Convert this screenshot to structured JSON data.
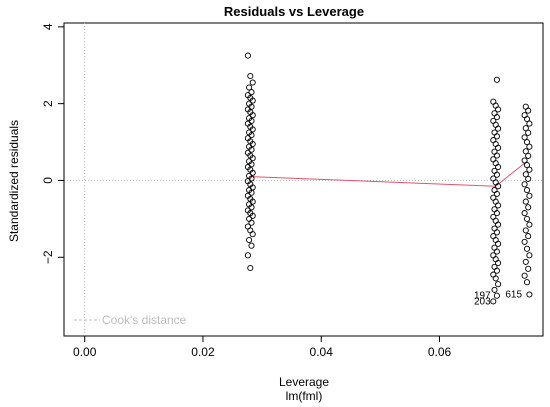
{
  "chart_data": {
    "type": "scatter",
    "title": "Residuals vs Leverage",
    "xlabel": "Leverage",
    "xlabel_sub": "lm(fml)",
    "ylabel": "Standardized residuals",
    "xlim": [
      -0.0035,
      0.0775
    ],
    "ylim": [
      -4.05,
      4.1
    ],
    "x_ticks": [
      0.0,
      0.02,
      0.04,
      0.06
    ],
    "x_tick_labels": [
      "0.00",
      "0.02",
      "0.04",
      "0.06"
    ],
    "y_ticks": [
      -2,
      0,
      2,
      4
    ],
    "y_tick_labels": [
      "−2",
      "0",
      "2",
      "4"
    ],
    "grid": false,
    "reference_lines": [
      {
        "orientation": "horizontal",
        "value": 0,
        "color": "#bebebe",
        "style": "dotted"
      },
      {
        "orientation": "vertical",
        "value": 0,
        "color": "#bebebe",
        "style": "dotted"
      }
    ],
    "legend": {
      "position": "bottom-left",
      "entries": [
        {
          "label": "Cook's distance",
          "color": "#bebebe",
          "style": "dashed"
        }
      ]
    },
    "leverage_groups": [
      {
        "leverage": 0.028,
        "residuals": [
          3.25,
          2.72,
          2.55,
          2.42,
          2.3,
          2.22,
          2.15,
          2.08,
          2.0,
          1.92,
          1.85,
          1.78,
          1.7,
          1.62,
          1.55,
          1.48,
          1.4,
          1.33,
          1.25,
          1.18,
          1.1,
          1.02,
          0.95,
          0.88,
          0.8,
          0.72,
          0.65,
          0.58,
          0.5,
          0.42,
          0.35,
          0.28,
          0.2,
          0.12,
          0.05,
          -0.02,
          -0.1,
          -0.18,
          -0.25,
          -0.32,
          -0.4,
          -0.48,
          -0.55,
          -0.62,
          -0.7,
          -0.78,
          -0.85,
          -0.92,
          -1.0,
          -1.1,
          -1.2,
          -1.3,
          -1.4,
          -1.55,
          -1.7,
          -1.95,
          -2.28
        ]
      },
      {
        "leverage": 0.0695,
        "residuals": [
          2.62,
          2.05,
          1.95,
          1.85,
          1.75,
          1.65,
          1.55,
          1.45,
          1.35,
          1.25,
          1.15,
          1.05,
          0.95,
          0.85,
          0.75,
          0.65,
          0.55,
          0.45,
          0.35,
          0.25,
          0.15,
          0.05,
          -0.05,
          -0.15,
          -0.25,
          -0.35,
          -0.45,
          -0.55,
          -0.65,
          -0.75,
          -0.85,
          -0.95,
          -1.05,
          -1.15,
          -1.25,
          -1.35,
          -1.45,
          -1.55,
          -1.65,
          -1.75,
          -1.85,
          -1.95,
          -2.05,
          -2.15,
          -2.25,
          -2.35,
          -2.45,
          -2.55,
          -2.7,
          -2.85,
          -3.0,
          -3.15
        ]
      },
      {
        "leverage": 0.0748,
        "residuals": [
          1.92,
          1.82,
          1.7,
          1.6,
          1.48,
          1.36,
          1.24,
          1.12,
          1.0,
          0.88,
          0.76,
          0.64,
          0.52,
          0.4,
          0.28,
          0.16,
          0.04,
          -0.1,
          -0.25,
          -0.4,
          -0.55,
          -0.7,
          -0.85,
          -1.0,
          -1.15,
          -1.3,
          -1.45,
          -1.6,
          -1.78,
          -1.95,
          -2.12,
          -2.3,
          -2.48,
          -2.65,
          -2.97
        ]
      }
    ],
    "smooth_line": {
      "color": "#df536b",
      "x": [
        0.028,
        0.0695,
        0.0748
      ],
      "y": [
        0.1,
        -0.15,
        0.5
      ]
    },
    "point_labels": [
      {
        "text": "197",
        "x": 0.0695,
        "y": -3.0
      },
      {
        "text": "203",
        "x": 0.0695,
        "y": -3.15
      },
      {
        "text": "615",
        "x": 0.0748,
        "y": -2.97
      }
    ],
    "colors": {
      "points": "#000000",
      "smooth": "#df536b",
      "reference": "#bebebe"
    }
  }
}
